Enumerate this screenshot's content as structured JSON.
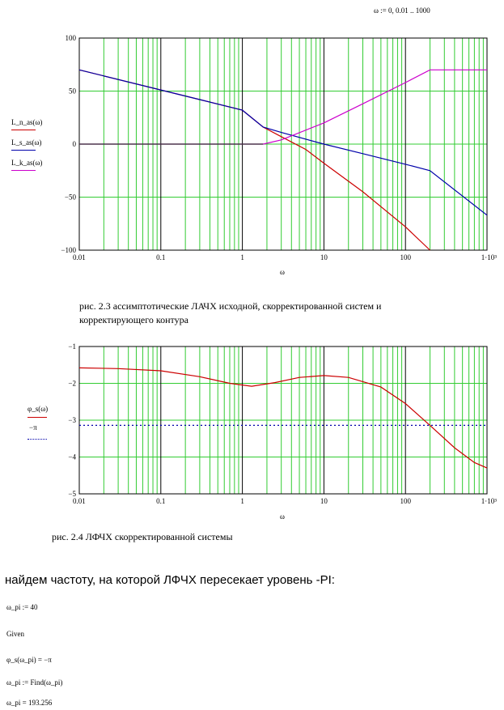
{
  "range_def": "ω := 0, 0.01 .. 1000",
  "chart_data": [
    {
      "type": "line",
      "xscale": "log",
      "xlim": [
        0.01,
        1000
      ],
      "ylim": [
        -100,
        100
      ],
      "x_ticks": [
        "0.01",
        "0.1",
        "1",
        "10",
        "100",
        "1·10³"
      ],
      "y_ticks": [
        "100",
        "50",
        "0",
        "−50",
        "−100"
      ],
      "xlabel": "ω",
      "grid": true,
      "legend_position": "left",
      "series": [
        {
          "name": "L_n_as(ω)",
          "color": "#cc0000",
          "x": [
            0.01,
            0.3,
            1,
            1.8,
            3,
            6,
            10,
            30,
            100,
            200
          ],
          "y": [
            70,
            42,
            32,
            16,
            7,
            -5,
            -18,
            -45,
            -78,
            -100
          ]
        },
        {
          "name": "L_s_as(ω)",
          "color": "#0000aa",
          "x": [
            0.01,
            0.3,
            1,
            1.8,
            3,
            10,
            30,
            100,
            200,
            1000
          ],
          "y": [
            70,
            42,
            32,
            16,
            11,
            0,
            -9,
            -19,
            -25,
            -67
          ]
        },
        {
          "name": "L_k_as(ω)",
          "color": "#cc00cc",
          "x": [
            0.01,
            1.8,
            3,
            10,
            30,
            100,
            200,
            1000
          ],
          "y": [
            0,
            0,
            4,
            20,
            38,
            58,
            70,
            70
          ]
        },
        {
          "name": "",
          "color": "#333333",
          "x": [
            0.01,
            1.8
          ],
          "y": [
            0,
            0
          ]
        }
      ]
    },
    {
      "type": "line",
      "xscale": "log",
      "xlim": [
        0.01,
        1000
      ],
      "ylim": [
        -5,
        -1
      ],
      "x_ticks": [
        "0.01",
        "0.1",
        "1",
        "10",
        "100",
        "1·10³"
      ],
      "y_ticks": [
        "−1",
        "−2",
        "−3",
        "−4",
        "−5"
      ],
      "xlabel": "ω",
      "grid": true,
      "legend_position": "left",
      "series": [
        {
          "name": "φ_s(ω)",
          "color": "#cc0000",
          "x": [
            0.01,
            0.03,
            0.1,
            0.3,
            0.7,
            1.3,
            2.5,
            5,
            10,
            20,
            50,
            100,
            200,
            400,
            700,
            1000
          ],
          "y": [
            -1.58,
            -1.6,
            -1.66,
            -1.82,
            -2.0,
            -2.08,
            -1.98,
            -1.84,
            -1.79,
            -1.84,
            -2.1,
            -2.55,
            -3.14,
            -3.75,
            -4.15,
            -4.3
          ]
        },
        {
          "name": "−π",
          "color": "#0000aa",
          "dash": true,
          "x": [
            0.01,
            1000
          ],
          "y": [
            -3.14159,
            -3.14159
          ]
        }
      ]
    }
  ],
  "captions": {
    "fig23": "рис. 2.3 ассимптотические ЛАЧХ исходной, скорректированной систем и корректирующего контура",
    "fig24": "рис. 2.4 ЛФЧХ скорректированной системы"
  },
  "heading": "найдем частоту, на которой ЛФЧХ пересекает уровень -PI:",
  "math": {
    "line1": "ω_pi := 40",
    "line2": "Given",
    "line3": "φ_s(ω_pi) = −π",
    "line4": "ω_pi := Find(ω_pi)",
    "line5": "ω_pi = 193.256"
  }
}
